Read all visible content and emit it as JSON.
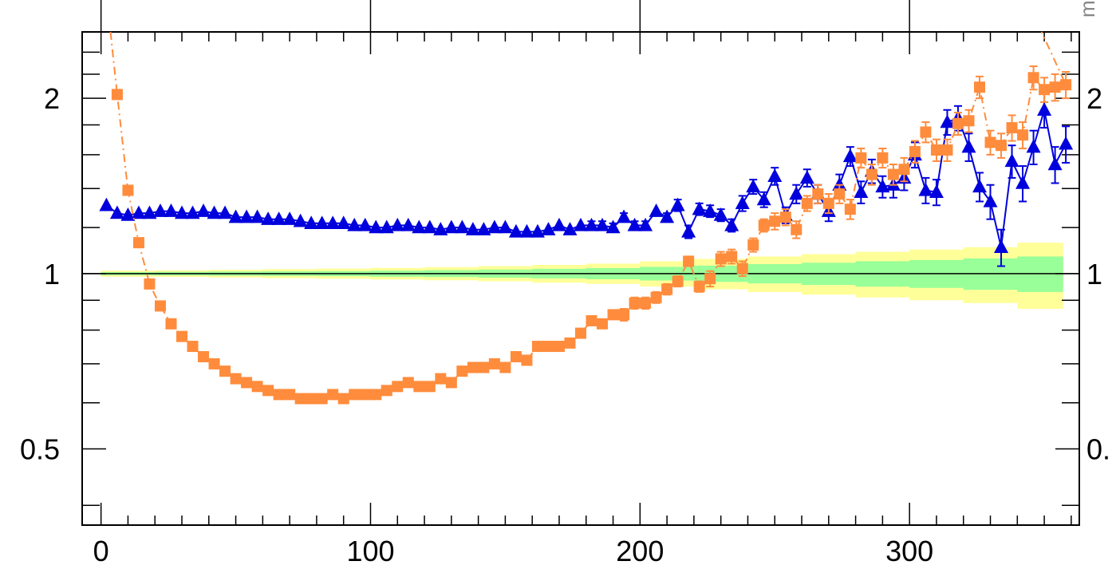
{
  "chart_data": {
    "type": "scatter",
    "xlim": [
      -7,
      363
    ],
    "ylim": [
      0.37,
      2.6
    ],
    "log_y": true,
    "grid": false,
    "x_ticks": [
      0,
      100,
      200,
      300
    ],
    "x_tick_labels": [
      "0",
      "100",
      "200",
      "300"
    ],
    "y_ticks": [
      0.5,
      1,
      2
    ],
    "y_tick_labels": [
      "0.5",
      "1",
      "2"
    ],
    "right_y_tick_labels": [
      "0.",
      "1",
      "2"
    ],
    "corner_label": "m",
    "reference_line": 1,
    "band_colors": {
      "outer": "#ffff99",
      "inner": "#99ff99"
    },
    "bands": {
      "x": [
        0,
        20,
        40,
        60,
        80,
        100,
        120,
        140,
        160,
        180,
        200,
        220,
        240,
        260,
        280,
        300,
        320,
        340,
        360
      ],
      "outer_half": [
        0.012,
        0.013,
        0.015,
        0.018,
        0.02,
        0.023,
        0.026,
        0.03,
        0.035,
        0.04,
        0.05,
        0.06,
        0.07,
        0.08,
        0.09,
        0.1,
        0.11,
        0.13,
        0.14
      ],
      "inner_half": [
        0.006,
        0.007,
        0.008,
        0.009,
        0.01,
        0.012,
        0.014,
        0.016,
        0.019,
        0.022,
        0.027,
        0.032,
        0.038,
        0.044,
        0.05,
        0.055,
        0.062,
        0.07,
        0.075
      ]
    },
    "series": [
      {
        "marker": "triangle",
        "color": "#0000dd",
        "line_style": "solid",
        "x": [
          2,
          6,
          10,
          14,
          18,
          22,
          26,
          30,
          34,
          38,
          42,
          46,
          50,
          54,
          58,
          62,
          66,
          70,
          74,
          78,
          82,
          86,
          90,
          94,
          98,
          102,
          106,
          110,
          114,
          118,
          122,
          126,
          130,
          134,
          138,
          142,
          146,
          150,
          154,
          158,
          162,
          166,
          170,
          174,
          178,
          182,
          186,
          190,
          194,
          198,
          202,
          206,
          210,
          214,
          218,
          222,
          226,
          230,
          234,
          238,
          242,
          246,
          250,
          254,
          258,
          262,
          266,
          270,
          274,
          278,
          282,
          286,
          290,
          294,
          298,
          302,
          306,
          310,
          314,
          318,
          322,
          326,
          330,
          334,
          338,
          342,
          346,
          350,
          354,
          358
        ],
        "y": [
          1.31,
          1.27,
          1.26,
          1.27,
          1.27,
          1.28,
          1.28,
          1.27,
          1.27,
          1.28,
          1.27,
          1.27,
          1.25,
          1.25,
          1.25,
          1.24,
          1.24,
          1.24,
          1.23,
          1.22,
          1.22,
          1.22,
          1.22,
          1.21,
          1.21,
          1.2,
          1.2,
          1.21,
          1.21,
          1.2,
          1.2,
          1.19,
          1.2,
          1.2,
          1.19,
          1.19,
          1.2,
          1.2,
          1.18,
          1.18,
          1.18,
          1.19,
          1.21,
          1.19,
          1.21,
          1.21,
          1.21,
          1.2,
          1.25,
          1.21,
          1.21,
          1.28,
          1.25,
          1.31,
          1.18,
          1.29,
          1.28,
          1.26,
          1.21,
          1.32,
          1.41,
          1.34,
          1.47,
          1.26,
          1.37,
          1.46,
          1.37,
          1.28,
          1.42,
          1.59,
          1.38,
          1.5,
          1.41,
          1.42,
          1.46,
          1.6,
          1.39,
          1.38,
          1.82,
          1.85,
          1.65,
          1.41,
          1.33,
          1.11,
          1.56,
          1.43,
          1.65,
          1.91,
          1.54,
          1.67
        ],
        "err": [
          0.01,
          0.01,
          0.01,
          0.01,
          0.01,
          0.01,
          0.01,
          0.01,
          0.01,
          0.01,
          0.01,
          0.01,
          0.01,
          0.01,
          0.01,
          0.01,
          0.01,
          0.01,
          0.01,
          0.01,
          0.01,
          0.01,
          0.01,
          0.01,
          0.01,
          0.01,
          0.01,
          0.01,
          0.01,
          0.01,
          0.01,
          0.01,
          0.01,
          0.01,
          0.01,
          0.01,
          0.01,
          0.01,
          0.01,
          0.01,
          0.01,
          0.01,
          0.01,
          0.01,
          0.01,
          0.02,
          0.02,
          0.02,
          0.02,
          0.02,
          0.02,
          0.02,
          0.02,
          0.03,
          0.03,
          0.03,
          0.03,
          0.03,
          0.03,
          0.04,
          0.04,
          0.04,
          0.05,
          0.04,
          0.05,
          0.05,
          0.05,
          0.05,
          0.06,
          0.06,
          0.06,
          0.07,
          0.06,
          0.07,
          0.07,
          0.08,
          0.07,
          0.07,
          0.09,
          0.09,
          0.09,
          0.08,
          0.09,
          0.08,
          0.1,
          0.1,
          0.11,
          0.13,
          0.11,
          0.12
        ]
      },
      {
        "marker": "square",
        "color": "#ff8c3c",
        "line_style": "dashdot",
        "x": [
          6,
          10,
          14,
          18,
          22,
          26,
          30,
          34,
          38,
          42,
          46,
          50,
          54,
          58,
          62,
          66,
          70,
          74,
          78,
          82,
          86,
          90,
          94,
          98,
          102,
          106,
          110,
          114,
          118,
          122,
          126,
          130,
          134,
          138,
          142,
          146,
          150,
          154,
          158,
          162,
          166,
          170,
          174,
          178,
          182,
          186,
          190,
          194,
          198,
          202,
          206,
          210,
          214,
          218,
          222,
          226,
          230,
          234,
          238,
          242,
          246,
          250,
          254,
          258,
          262,
          266,
          270,
          274,
          278,
          282,
          286,
          290,
          294,
          298,
          302,
          306,
          310,
          314,
          318,
          322,
          326,
          330,
          334,
          338,
          342,
          346,
          350,
          354,
          358
        ],
        "y": [
          2.03,
          1.39,
          1.13,
          0.96,
          0.88,
          0.82,
          0.78,
          0.75,
          0.72,
          0.7,
          0.68,
          0.66,
          0.65,
          0.64,
          0.63,
          0.62,
          0.62,
          0.61,
          0.61,
          0.61,
          0.62,
          0.61,
          0.62,
          0.62,
          0.62,
          0.63,
          0.64,
          0.65,
          0.64,
          0.64,
          0.66,
          0.65,
          0.68,
          0.69,
          0.69,
          0.7,
          0.69,
          0.72,
          0.71,
          0.75,
          0.75,
          0.75,
          0.76,
          0.79,
          0.83,
          0.82,
          0.85,
          0.85,
          0.89,
          0.89,
          0.91,
          0.94,
          0.97,
          1.05,
          0.95,
          0.98,
          1.06,
          1.07,
          1.02,
          1.12,
          1.21,
          1.23,
          1.25,
          1.19,
          1.32,
          1.37,
          1.32,
          1.37,
          1.29,
          1.58,
          1.48,
          1.58,
          1.48,
          1.51,
          1.62,
          1.75,
          1.63,
          1.63,
          1.81,
          1.83,
          2.09,
          1.68,
          1.66,
          1.78,
          1.73,
          2.17,
          2.07,
          2.09,
          2.11
        ],
        "err": [
          0.02,
          0.015,
          0.01,
          0.01,
          0.01,
          0.01,
          0.01,
          0.01,
          0.01,
          0.01,
          0.01,
          0.01,
          0.01,
          0.01,
          0.01,
          0.01,
          0.01,
          0.01,
          0.01,
          0.01,
          0.01,
          0.01,
          0.01,
          0.01,
          0.01,
          0.01,
          0.01,
          0.01,
          0.01,
          0.01,
          0.01,
          0.01,
          0.01,
          0.01,
          0.01,
          0.01,
          0.01,
          0.01,
          0.01,
          0.01,
          0.01,
          0.01,
          0.01,
          0.01,
          0.01,
          0.01,
          0.01,
          0.02,
          0.02,
          0.02,
          0.02,
          0.02,
          0.02,
          0.02,
          0.02,
          0.03,
          0.03,
          0.03,
          0.03,
          0.03,
          0.03,
          0.04,
          0.04,
          0.04,
          0.04,
          0.05,
          0.05,
          0.05,
          0.05,
          0.06,
          0.06,
          0.06,
          0.06,
          0.07,
          0.07,
          0.07,
          0.07,
          0.07,
          0.08,
          0.08,
          0.09,
          0.08,
          0.08,
          0.09,
          0.09,
          0.1,
          0.1,
          0.11,
          0.11
        ]
      }
    ]
  }
}
